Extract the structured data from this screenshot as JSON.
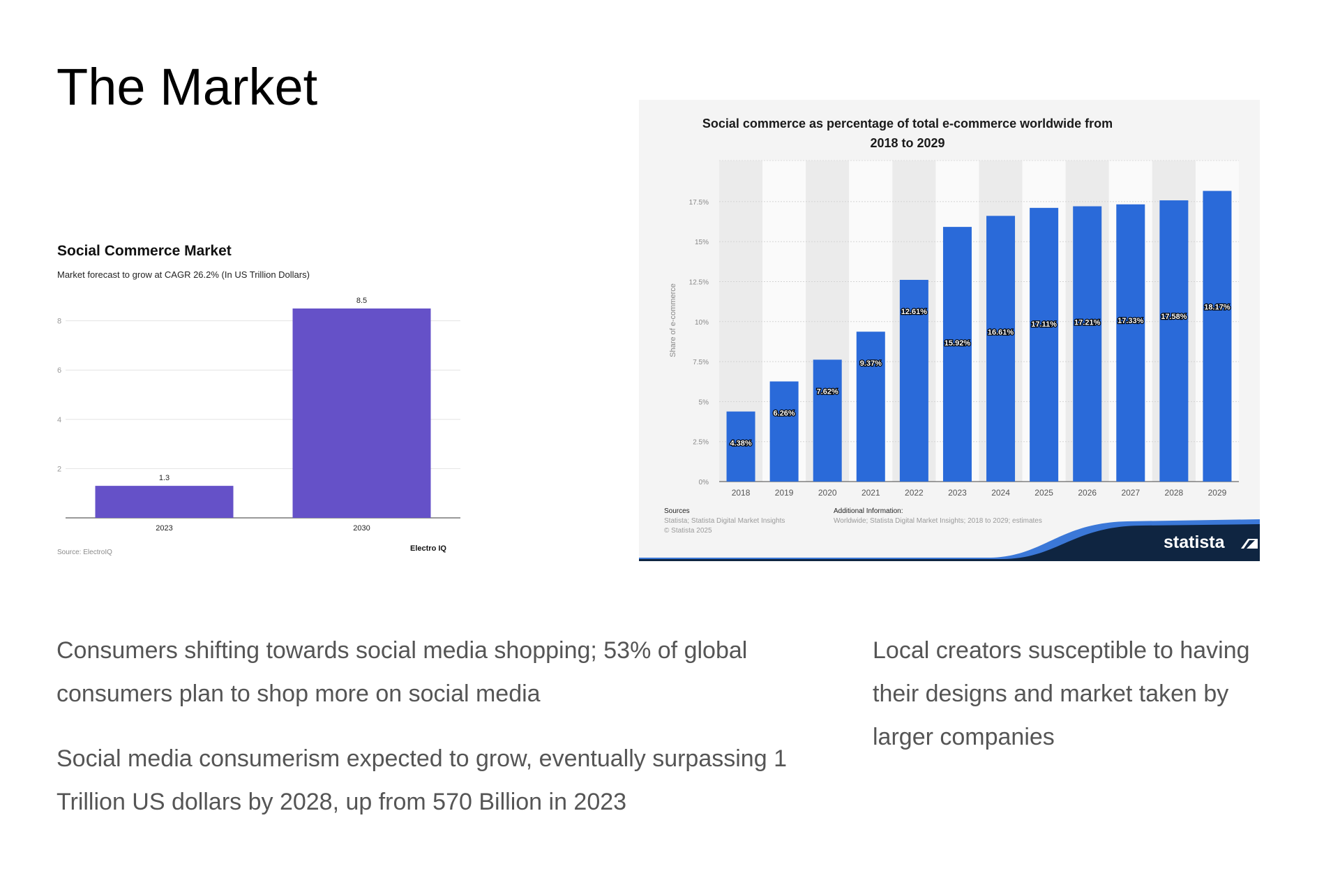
{
  "slide": {
    "title": "The Market",
    "paragraphs": [
      "Consumers shifting towards social media shopping; 53% of global consumers plan to shop more on social media",
      "Social media consumerism expected to grow, eventually surpassing 1 Trillion US dollars by 2028, up from 570 Billion in 2023",
      "Local creators susceptible to having their designs and market taken by larger companies"
    ]
  },
  "left_chart_footer": {
    "source": "Source: ElectroIQ",
    "brand": "Electro IQ"
  },
  "right_chart_footer": {
    "sources_heading": "Sources",
    "sources_lines": [
      "Statista; Statista Digital Market Insights",
      "© Statista 2025"
    ],
    "additional_heading": "Additional Information:",
    "additional_text": "Worldwide; Statista Digital Market Insights; 2018 to 2029; estimates",
    "brand": "statista"
  },
  "chart_data": [
    {
      "type": "bar",
      "title": "Social Commerce Market",
      "subtitle": "Market forecast to grow at CAGR 26.2% (In US Trillion Dollars)",
      "categories": [
        "2023",
        "2030"
      ],
      "values": [
        1.3,
        8.5
      ],
      "data_labels": [
        "1.3",
        "8.5"
      ],
      "y_ticks": [
        "2",
        "4",
        "6",
        "8"
      ],
      "ylim": [
        0,
        8.5
      ],
      "grid": true,
      "bar_color": "#6551c8"
    },
    {
      "type": "bar",
      "title": "Social commerce as percentage of total e-commerce worldwide from 2018 to 2029",
      "ylabel": "Share of e-commerce",
      "categories": [
        "2018",
        "2019",
        "2020",
        "2021",
        "2022",
        "2023",
        "2024",
        "2025",
        "2026",
        "2027",
        "2028",
        "2029"
      ],
      "values": [
        4.38,
        6.26,
        7.62,
        9.37,
        12.61,
        15.92,
        16.61,
        17.11,
        17.21,
        17.33,
        17.58,
        18.17
      ],
      "data_labels": [
        "4.38%",
        "6.26%",
        "7.62%",
        "9.37%",
        "12.61%",
        "15.92%",
        "16.61%",
        "17.11%",
        "17.21%",
        "17.33%",
        "17.58%",
        "18.17%"
      ],
      "y_ticks": [
        "0%",
        "2.5%",
        "5%",
        "7.5%",
        "10%",
        "12.5%",
        "15%",
        "17.5%"
      ],
      "ylim": [
        0,
        20
      ],
      "grid": true,
      "bar_color": "#2a6ad9"
    }
  ]
}
